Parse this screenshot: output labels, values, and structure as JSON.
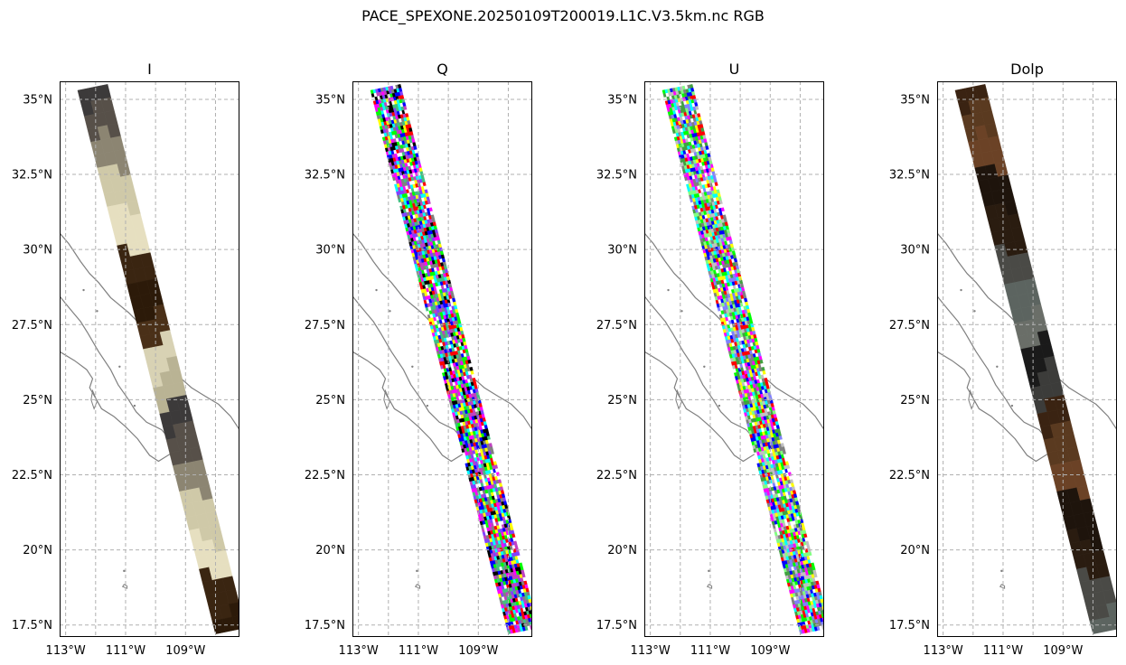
{
  "figure": {
    "title": "PACE_SPEXONE.20250109T200019.L1C.V3.5km.nc RGB"
  },
  "colors": {
    "grid": "#b0b0b0",
    "coastline": "#808080",
    "frame": "#000000"
  },
  "chart_data": [
    {
      "type": "map",
      "title": "I",
      "style": "rgb_swath",
      "palette": [
        "#3c3a3a",
        "#575049",
        "#8c8572",
        "#cfc9a8",
        "#e6dfc0",
        "#3a2511",
        "#2c1a09",
        "#4a3018",
        "#d8d2b4",
        "#b9b394"
      ],
      "xlim": [
        -113.2,
        -107.2
      ],
      "ylim": [
        17.1,
        35.6
      ],
      "xticks": [
        {
          "value": -113,
          "label": "113°W"
        },
        {
          "value": -111,
          "label": "111°W"
        },
        {
          "value": -109,
          "label": "109°W"
        }
      ],
      "yticks": [
        {
          "value": 35,
          "label": "35°N"
        },
        {
          "value": 32.5,
          "label": "32.5°N"
        },
        {
          "value": 30,
          "label": "30°N"
        },
        {
          "value": 27.5,
          "label": "27.5°N"
        },
        {
          "value": 25,
          "label": "25°N"
        },
        {
          "value": 22.5,
          "label": "22.5°N"
        },
        {
          "value": 20,
          "label": "20°N"
        },
        {
          "value": 17.5,
          "label": "17.5°N"
        }
      ],
      "grid": true,
      "extra_gridlines_x": [
        -112,
        -110,
        -108
      ],
      "swath": {
        "north_edge": [
          [
            -112.6,
            35.3
          ],
          [
            -111.6,
            35.5
          ]
        ],
        "south_edge": [
          [
            -108.0,
            17.2
          ],
          [
            -107.0,
            17.4
          ]
        ]
      }
    },
    {
      "type": "map",
      "title": "Q",
      "style": "noise_swath",
      "palette": [
        "#ff00ff",
        "#00ff00",
        "#0000ff",
        "#ff0000",
        "#00ffff",
        "#ffff00",
        "#ffffff",
        "#808080",
        "#8040ff",
        "#40c080",
        "#c040c0",
        "#000000"
      ],
      "xlim": [
        -113.2,
        -107.2
      ],
      "ylim": [
        17.1,
        35.6
      ],
      "xticks": [
        {
          "value": -113,
          "label": "113°W"
        },
        {
          "value": -111,
          "label": "111°W"
        },
        {
          "value": -109,
          "label": "109°W"
        }
      ],
      "yticks": [
        {
          "value": 35,
          "label": "35°N"
        },
        {
          "value": 32.5,
          "label": "32.5°N"
        },
        {
          "value": 30,
          "label": "30°N"
        },
        {
          "value": 27.5,
          "label": "27.5°N"
        },
        {
          "value": 25,
          "label": "25°N"
        },
        {
          "value": 22.5,
          "label": "22.5°N"
        },
        {
          "value": 20,
          "label": "20°N"
        },
        {
          "value": 17.5,
          "label": "17.5°N"
        }
      ],
      "grid": true,
      "extra_gridlines_x": [
        -112,
        -110,
        -108
      ],
      "swath": {
        "north_edge": [
          [
            -112.6,
            35.3
          ],
          [
            -111.6,
            35.5
          ]
        ],
        "south_edge": [
          [
            -108.0,
            17.2
          ],
          [
            -107.0,
            17.4
          ]
        ]
      }
    },
    {
      "type": "map",
      "title": "U",
      "style": "noise_swath",
      "palette": [
        "#ff00ff",
        "#00ff00",
        "#0000ff",
        "#ff0000",
        "#00ffff",
        "#ffff00",
        "#ffffff",
        "#808080",
        "#80ff80",
        "#8080ff",
        "#c0c0c0",
        "#40a040"
      ],
      "xlim": [
        -113.2,
        -107.2
      ],
      "ylim": [
        17.1,
        35.6
      ],
      "xticks": [
        {
          "value": -113,
          "label": "113°W"
        },
        {
          "value": -111,
          "label": "111°W"
        },
        {
          "value": -109,
          "label": "109°W"
        }
      ],
      "yticks": [
        {
          "value": 35,
          "label": "35°N"
        },
        {
          "value": 32.5,
          "label": "32.5°N"
        },
        {
          "value": 30,
          "label": "30°N"
        },
        {
          "value": 27.5,
          "label": "27.5°N"
        },
        {
          "value": 25,
          "label": "25°N"
        },
        {
          "value": 22.5,
          "label": "22.5°N"
        },
        {
          "value": 20,
          "label": "20°N"
        },
        {
          "value": 17.5,
          "label": "17.5°N"
        }
      ],
      "grid": true,
      "extra_gridlines_x": [
        -112,
        -110,
        -108
      ],
      "swath": {
        "north_edge": [
          [
            -112.6,
            35.3
          ],
          [
            -111.6,
            35.5
          ]
        ],
        "south_edge": [
          [
            -108.0,
            17.2
          ],
          [
            -107.0,
            17.4
          ]
        ]
      }
    },
    {
      "type": "map",
      "title": "Dolp",
      "style": "rgb_swath",
      "palette": [
        "#3a2312",
        "#5a3a20",
        "#6b4226",
        "#1e140c",
        "#2a1c10",
        "#4a4a46",
        "#5c6460",
        "#6a6e68",
        "#1a1a1a",
        "#3c3c3a"
      ],
      "xlim": [
        -113.2,
        -107.2
      ],
      "ylim": [
        17.1,
        35.6
      ],
      "xticks": [
        {
          "value": -113,
          "label": "113°W"
        },
        {
          "value": -111,
          "label": "111°W"
        },
        {
          "value": -109,
          "label": "109°W"
        }
      ],
      "yticks": [
        {
          "value": 35,
          "label": "35°N"
        },
        {
          "value": 32.5,
          "label": "32.5°N"
        },
        {
          "value": 30,
          "label": "30°N"
        },
        {
          "value": 27.5,
          "label": "27.5°N"
        },
        {
          "value": 25,
          "label": "25°N"
        },
        {
          "value": 22.5,
          "label": "22.5°N"
        },
        {
          "value": 20,
          "label": "20°N"
        },
        {
          "value": 17.5,
          "label": "17.5°N"
        }
      ],
      "grid": true,
      "extra_gridlines_x": [
        -112,
        -110,
        -108
      ],
      "swath": {
        "north_edge": [
          [
            -112.6,
            35.3
          ],
          [
            -111.6,
            35.5
          ]
        ],
        "south_edge": [
          [
            -108.0,
            17.2
          ],
          [
            -107.0,
            17.4
          ]
        ]
      }
    }
  ]
}
